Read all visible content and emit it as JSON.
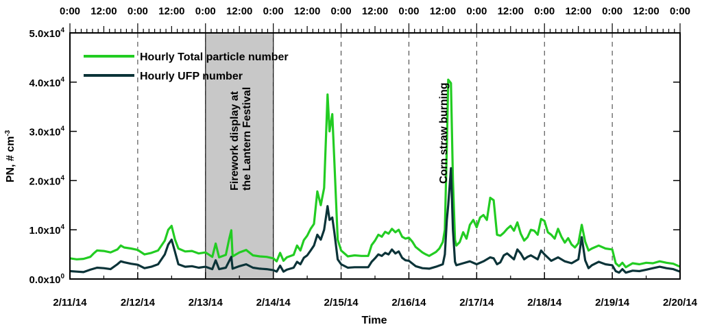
{
  "chart_data": {
    "type": "line",
    "xlabel": "Time",
    "ylabel": "PN, # cm",
    "ylabel_sup": "-3",
    "ylim": [
      0,
      50000
    ],
    "yticks": [
      {
        "value": 0,
        "base": "0.0x10",
        "exp": "0"
      },
      {
        "value": 10000,
        "base": "1.0x10",
        "exp": "4"
      },
      {
        "value": 20000,
        "base": "2.0x10",
        "exp": "4"
      },
      {
        "value": 30000,
        "base": "3.0x10",
        "exp": "4"
      },
      {
        "value": 40000,
        "base": "4.0x10",
        "exp": "4"
      },
      {
        "value": 50000,
        "base": "5.0x10",
        "exp": "4"
      }
    ],
    "xlim_days": [
      0,
      9
    ],
    "x_tick_labels": [
      "2/11/14",
      "2/12/14",
      "2/13/14",
      "2/14/14",
      "2/15/14",
      "2/16/14",
      "2/17/14",
      "2/18/14",
      "2/19/14",
      "2/20/14"
    ],
    "top_tick_labels": [
      "0:00",
      "12:00",
      "0:00",
      "12:00",
      "0:00",
      "12:00",
      "0:00",
      "12:00",
      "0:00",
      "12:00",
      "0:00",
      "12:00",
      "0:00",
      "12:00",
      "0:00",
      "12:00",
      "0:00",
      "12:00",
      "0:00"
    ],
    "shaded_region_days": [
      2,
      3
    ],
    "annotations": [
      {
        "text": "Firework display at",
        "day": 2.48
      },
      {
        "text": "the Lantern Festival",
        "day": 2.66
      },
      {
        "text": "Corn straw burning",
        "day": 5.56
      }
    ],
    "legend_position": "top-left",
    "colors": {
      "total": "#22cc22",
      "ufp": "#0b3338",
      "shade": "#c8c8c8"
    },
    "series": [
      {
        "name": "Hourly Total particle number",
        "points": [
          [
            0.0,
            4200
          ],
          [
            0.1,
            4000
          ],
          [
            0.2,
            4100
          ],
          [
            0.3,
            4500
          ],
          [
            0.35,
            5200
          ],
          [
            0.4,
            5800
          ],
          [
            0.5,
            5700
          ],
          [
            0.6,
            5400
          ],
          [
            0.7,
            6000
          ],
          [
            0.75,
            6800
          ],
          [
            0.8,
            6400
          ],
          [
            0.9,
            6200
          ],
          [
            1.0,
            5900
          ],
          [
            1.1,
            5000
          ],
          [
            1.2,
            5300
          ],
          [
            1.3,
            5800
          ],
          [
            1.4,
            7800
          ],
          [
            1.45,
            10000
          ],
          [
            1.5,
            10800
          ],
          [
            1.55,
            8000
          ],
          [
            1.6,
            6200
          ],
          [
            1.7,
            5600
          ],
          [
            1.8,
            5700
          ],
          [
            1.9,
            5200
          ],
          [
            2.0,
            5400
          ],
          [
            2.1,
            4500
          ],
          [
            2.15,
            7200
          ],
          [
            2.2,
            4400
          ],
          [
            2.3,
            4900
          ],
          [
            2.35,
            8200
          ],
          [
            2.38,
            9900
          ],
          [
            2.4,
            4600
          ],
          [
            2.5,
            5400
          ],
          [
            2.6,
            5900
          ],
          [
            2.7,
            4800
          ],
          [
            2.8,
            4600
          ],
          [
            2.9,
            4500
          ],
          [
            3.0,
            4200
          ],
          [
            3.05,
            3600
          ],
          [
            3.1,
            5300
          ],
          [
            3.15,
            3700
          ],
          [
            3.2,
            4400
          ],
          [
            3.3,
            4900
          ],
          [
            3.35,
            6800
          ],
          [
            3.4,
            5800
          ],
          [
            3.45,
            7900
          ],
          [
            3.5,
            8800
          ],
          [
            3.55,
            10200
          ],
          [
            3.6,
            11200
          ],
          [
            3.65,
            17800
          ],
          [
            3.7,
            15000
          ],
          [
            3.75,
            18500
          ],
          [
            3.8,
            37500
          ],
          [
            3.83,
            30000
          ],
          [
            3.87,
            33500
          ],
          [
            3.9,
            24000
          ],
          [
            3.95,
            8000
          ],
          [
            4.0,
            5800
          ],
          [
            4.1,
            4600
          ],
          [
            4.2,
            4800
          ],
          [
            4.3,
            4700
          ],
          [
            4.4,
            4700
          ],
          [
            4.45,
            6900
          ],
          [
            4.5,
            7800
          ],
          [
            4.55,
            9000
          ],
          [
            4.6,
            8600
          ],
          [
            4.65,
            9600
          ],
          [
            4.7,
            9200
          ],
          [
            4.75,
            10200
          ],
          [
            4.8,
            9500
          ],
          [
            4.85,
            10000
          ],
          [
            4.9,
            8600
          ],
          [
            4.95,
            8200
          ],
          [
            5.0,
            8400
          ],
          [
            5.05,
            7600
          ],
          [
            5.1,
            6500
          ],
          [
            5.2,
            5400
          ],
          [
            5.25,
            5000
          ],
          [
            5.3,
            4700
          ],
          [
            5.4,
            5500
          ],
          [
            5.45,
            6200
          ],
          [
            5.5,
            7500
          ],
          [
            5.53,
            10000
          ],
          [
            5.56,
            27000
          ],
          [
            5.58,
            40500
          ],
          [
            5.62,
            39800
          ],
          [
            5.65,
            20000
          ],
          [
            5.68,
            8000
          ],
          [
            5.7,
            6800
          ],
          [
            5.75,
            7500
          ],
          [
            5.8,
            9500
          ],
          [
            5.85,
            8200
          ],
          [
            5.9,
            11000
          ],
          [
            5.95,
            12000
          ],
          [
            6.0,
            10500
          ],
          [
            6.05,
            12500
          ],
          [
            6.1,
            13000
          ],
          [
            6.15,
            12000
          ],
          [
            6.2,
            16500
          ],
          [
            6.25,
            16000
          ],
          [
            6.3,
            9000
          ],
          [
            6.35,
            8800
          ],
          [
            6.4,
            9400
          ],
          [
            6.45,
            10200
          ],
          [
            6.5,
            10800
          ],
          [
            6.55,
            9800
          ],
          [
            6.6,
            11500
          ],
          [
            6.65,
            9200
          ],
          [
            6.7,
            7800
          ],
          [
            6.75,
            8500
          ],
          [
            6.8,
            10000
          ],
          [
            6.85,
            9800
          ],
          [
            6.9,
            9000
          ],
          [
            6.95,
            12200
          ],
          [
            7.0,
            11800
          ],
          [
            7.05,
            9500
          ],
          [
            7.1,
            9000
          ],
          [
            7.15,
            8200
          ],
          [
            7.2,
            10200
          ],
          [
            7.25,
            8600
          ],
          [
            7.3,
            7400
          ],
          [
            7.35,
            8300
          ],
          [
            7.4,
            7000
          ],
          [
            7.45,
            6400
          ],
          [
            7.5,
            7300
          ],
          [
            7.55,
            11000
          ],
          [
            7.6,
            7600
          ],
          [
            7.65,
            5800
          ],
          [
            7.7,
            6200
          ],
          [
            7.8,
            6800
          ],
          [
            7.9,
            6200
          ],
          [
            8.0,
            6000
          ],
          [
            8.05,
            3200
          ],
          [
            8.1,
            2600
          ],
          [
            8.15,
            3300
          ],
          [
            8.2,
            2400
          ],
          [
            8.3,
            3200
          ],
          [
            8.4,
            3000
          ],
          [
            8.5,
            3300
          ],
          [
            8.6,
            3200
          ],
          [
            8.7,
            3600
          ],
          [
            8.8,
            3300
          ],
          [
            8.9,
            3100
          ],
          [
            9.0,
            2500
          ]
        ]
      },
      {
        "name": "Hourly UFP number",
        "points": [
          [
            0.0,
            1600
          ],
          [
            0.1,
            1500
          ],
          [
            0.2,
            1400
          ],
          [
            0.3,
            1900
          ],
          [
            0.4,
            2300
          ],
          [
            0.5,
            2200
          ],
          [
            0.6,
            2000
          ],
          [
            0.7,
            3000
          ],
          [
            0.75,
            3600
          ],
          [
            0.8,
            3400
          ],
          [
            0.9,
            3100
          ],
          [
            1.0,
            2900
          ],
          [
            1.1,
            2200
          ],
          [
            1.2,
            2500
          ],
          [
            1.3,
            3000
          ],
          [
            1.4,
            5000
          ],
          [
            1.45,
            7000
          ],
          [
            1.5,
            8000
          ],
          [
            1.55,
            5500
          ],
          [
            1.6,
            3000
          ],
          [
            1.7,
            2500
          ],
          [
            1.8,
            2600
          ],
          [
            1.9,
            2300
          ],
          [
            2.0,
            2500
          ],
          [
            2.1,
            2000
          ],
          [
            2.15,
            3800
          ],
          [
            2.2,
            2000
          ],
          [
            2.3,
            2300
          ],
          [
            2.38,
            4500
          ],
          [
            2.4,
            2100
          ],
          [
            2.5,
            2600
          ],
          [
            2.6,
            3000
          ],
          [
            2.7,
            2300
          ],
          [
            2.8,
            2100
          ],
          [
            2.9,
            2000
          ],
          [
            3.0,
            1800
          ],
          [
            3.05,
            1500
          ],
          [
            3.1,
            2700
          ],
          [
            3.15,
            1500
          ],
          [
            3.2,
            1900
          ],
          [
            3.3,
            2300
          ],
          [
            3.35,
            3500
          ],
          [
            3.4,
            3000
          ],
          [
            3.45,
            4300
          ],
          [
            3.5,
            4800
          ],
          [
            3.55,
            5800
          ],
          [
            3.6,
            6800
          ],
          [
            3.65,
            9000
          ],
          [
            3.7,
            8000
          ],
          [
            3.75,
            10000
          ],
          [
            3.8,
            14800
          ],
          [
            3.83,
            12000
          ],
          [
            3.87,
            12500
          ],
          [
            3.9,
            9500
          ],
          [
            3.95,
            4000
          ],
          [
            4.0,
            3000
          ],
          [
            4.1,
            2300
          ],
          [
            4.2,
            2400
          ],
          [
            4.3,
            2400
          ],
          [
            4.4,
            2400
          ],
          [
            4.45,
            3500
          ],
          [
            4.5,
            4200
          ],
          [
            4.55,
            5000
          ],
          [
            4.6,
            4700
          ],
          [
            4.65,
            5300
          ],
          [
            4.7,
            5000
          ],
          [
            4.75,
            6000
          ],
          [
            4.8,
            5200
          ],
          [
            4.85,
            5600
          ],
          [
            4.9,
            4300
          ],
          [
            4.95,
            3800
          ],
          [
            5.0,
            3700
          ],
          [
            5.1,
            2600
          ],
          [
            5.2,
            2200
          ],
          [
            5.3,
            2100
          ],
          [
            5.4,
            2500
          ],
          [
            5.5,
            3000
          ],
          [
            5.53,
            5000
          ],
          [
            5.56,
            12000
          ],
          [
            5.58,
            15000
          ],
          [
            5.62,
            22500
          ],
          [
            5.65,
            10000
          ],
          [
            5.68,
            3500
          ],
          [
            5.7,
            2800
          ],
          [
            5.8,
            3200
          ],
          [
            5.9,
            3600
          ],
          [
            6.0,
            3000
          ],
          [
            6.1,
            3600
          ],
          [
            6.2,
            4400
          ],
          [
            6.25,
            4200
          ],
          [
            6.3,
            3000
          ],
          [
            6.35,
            3400
          ],
          [
            6.4,
            4800
          ],
          [
            6.45,
            5200
          ],
          [
            6.5,
            4600
          ],
          [
            6.55,
            4000
          ],
          [
            6.6,
            6000
          ],
          [
            6.65,
            5200
          ],
          [
            6.7,
            4000
          ],
          [
            6.75,
            4500
          ],
          [
            6.8,
            4800
          ],
          [
            6.9,
            4000
          ],
          [
            6.95,
            5800
          ],
          [
            7.0,
            5000
          ],
          [
            7.1,
            3700
          ],
          [
            7.2,
            4400
          ],
          [
            7.3,
            3600
          ],
          [
            7.4,
            3200
          ],
          [
            7.5,
            4000
          ],
          [
            7.55,
            8500
          ],
          [
            7.6,
            3800
          ],
          [
            7.65,
            2200
          ],
          [
            7.7,
            2800
          ],
          [
            7.8,
            3500
          ],
          [
            7.9,
            3000
          ],
          [
            8.0,
            2800
          ],
          [
            8.05,
            1600
          ],
          [
            8.1,
            1300
          ],
          [
            8.15,
            2000
          ],
          [
            8.2,
            1300
          ],
          [
            8.3,
            1700
          ],
          [
            8.4,
            1600
          ],
          [
            8.5,
            1900
          ],
          [
            8.6,
            2200
          ],
          [
            8.7,
            2500
          ],
          [
            8.8,
            2200
          ],
          [
            8.9,
            2000
          ],
          [
            9.0,
            1500
          ]
        ]
      }
    ]
  }
}
